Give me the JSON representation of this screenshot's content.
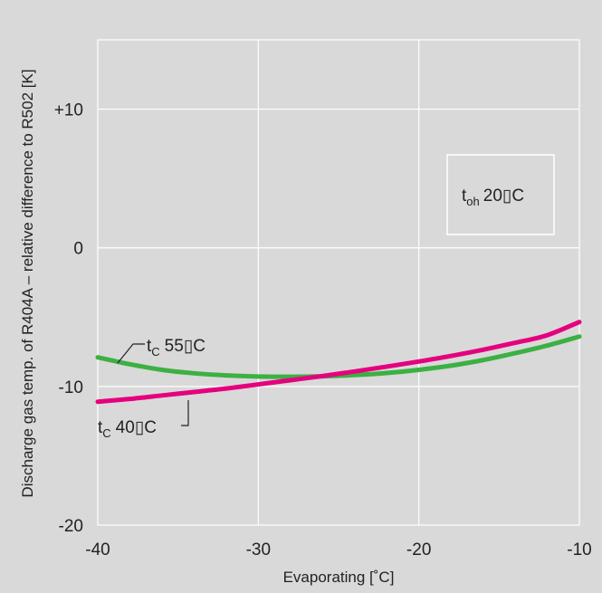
{
  "chart_data": {
    "type": "line",
    "title": "",
    "xlabel": "Evaporating  [˚C]",
    "ylabel": "Discharge gas temp. of R404A – relative difference to R502  [K]",
    "xlim": [
      -40,
      -10
    ],
    "ylim": [
      -20,
      15
    ],
    "x_ticks": [
      -40,
      -30,
      -20,
      -10
    ],
    "y_ticks": [
      -20,
      -10,
      0,
      10
    ],
    "x_tick_labels": [
      "-40",
      "-30",
      "-20",
      "-10"
    ],
    "y_tick_labels": [
      "-20",
      "-10",
      "0",
      "+10"
    ],
    "grid": true,
    "annotation": {
      "symbol": "t",
      "subscript": "oh",
      "value": "20",
      "unit": "C"
    },
    "series": [
      {
        "name": "tc 55",
        "label": {
          "symbol": "t",
          "subscript": "C",
          "value": "55",
          "unit": "C"
        },
        "color": "#3cb043",
        "x": [
          -40,
          -38,
          -36,
          -34,
          -32,
          -30,
          -28,
          -26,
          -24,
          -22,
          -20,
          -18,
          -16,
          -14,
          -12,
          -10
        ],
        "y": [
          -7.9,
          -8.4,
          -8.8,
          -9.05,
          -9.2,
          -9.28,
          -9.3,
          -9.27,
          -9.18,
          -9.03,
          -8.8,
          -8.5,
          -8.1,
          -7.6,
          -7.05,
          -6.4
        ]
      },
      {
        "name": "tc 40",
        "label": {
          "symbol": "t",
          "subscript": "C",
          "value": "40",
          "unit": "C"
        },
        "color": "#e5007e",
        "x": [
          -40,
          -38,
          -36,
          -34,
          -32,
          -30,
          -28,
          -26,
          -24,
          -22,
          -20,
          -18,
          -16,
          -14,
          -12,
          -10
        ],
        "y": [
          -11.1,
          -10.9,
          -10.65,
          -10.4,
          -10.15,
          -9.85,
          -9.55,
          -9.25,
          -8.92,
          -8.57,
          -8.2,
          -7.8,
          -7.35,
          -6.85,
          -6.3,
          -5.35
        ]
      }
    ]
  }
}
